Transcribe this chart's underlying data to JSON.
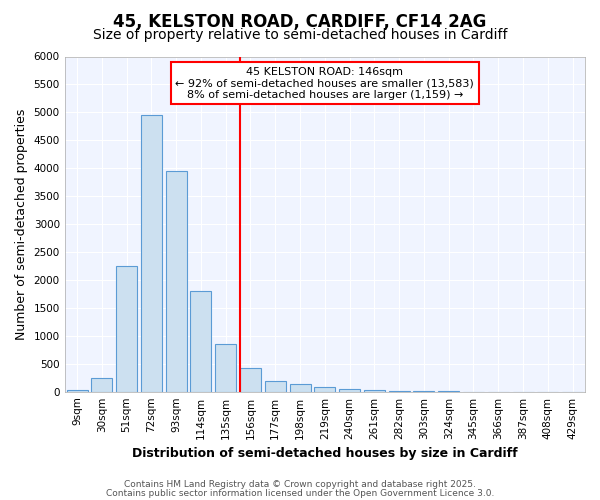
{
  "title": "45, KELSTON ROAD, CARDIFF, CF14 2AG",
  "subtitle": "Size of property relative to semi-detached houses in Cardiff",
  "xlabel": "Distribution of semi-detached houses by size in Cardiff",
  "ylabel": "Number of semi-detached properties",
  "bar_labels": [
    "9sqm",
    "30sqm",
    "51sqm",
    "72sqm",
    "93sqm",
    "114sqm",
    "135sqm",
    "156sqm",
    "177sqm",
    "198sqm",
    "219sqm",
    "240sqm",
    "261sqm",
    "282sqm",
    "303sqm",
    "324sqm",
    "345sqm",
    "366sqm",
    "387sqm",
    "408sqm",
    "429sqm"
  ],
  "bar_heights": [
    30,
    250,
    2250,
    4950,
    3950,
    1800,
    850,
    420,
    200,
    130,
    80,
    50,
    30,
    15,
    5,
    5,
    3,
    3,
    2,
    2,
    2
  ],
  "bar_color": "#cce0f0",
  "bar_edgecolor": "#5b9bd5",
  "vline_x_index": 7,
  "vline_color": "red",
  "annotation_title": "45 KELSTON ROAD: 146sqm",
  "annotation_line1": "← 92% of semi-detached houses are smaller (13,583)",
  "annotation_line2": "8% of semi-detached houses are larger (1,159) →",
  "ylim": [
    0,
    6000
  ],
  "yticks": [
    0,
    500,
    1000,
    1500,
    2000,
    2500,
    3000,
    3500,
    4000,
    4500,
    5000,
    5500,
    6000
  ],
  "footer_line1": "Contains HM Land Registry data © Crown copyright and database right 2025.",
  "footer_line2": "Contains public sector information licensed under the Open Government Licence 3.0.",
  "background_color": "#ffffff",
  "plot_background": "#f0f4ff",
  "grid_color": "#ffffff",
  "title_fontsize": 12,
  "subtitle_fontsize": 10,
  "axis_label_fontsize": 9,
  "tick_fontsize": 7.5,
  "footer_fontsize": 6.5
}
